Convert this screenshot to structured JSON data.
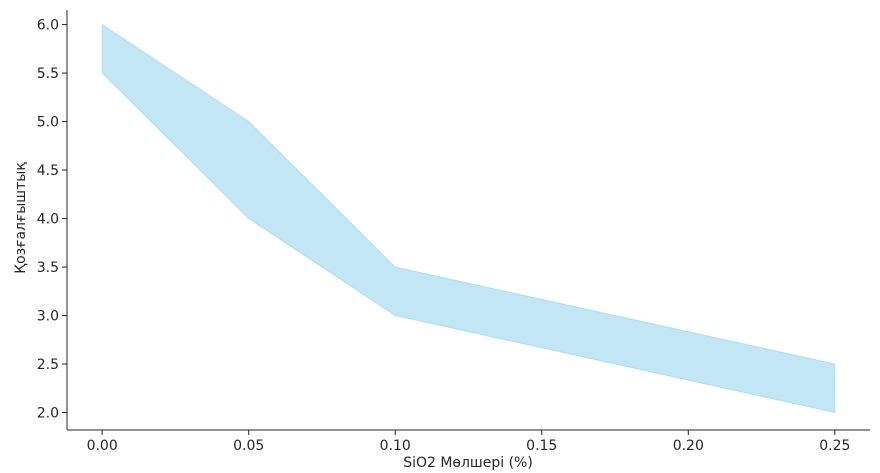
{
  "chart_data": {
    "type": "area",
    "title": "",
    "xlabel": "SiO2 Мөлшері (%)",
    "ylabel": "Қозғалғыштық",
    "xlim": [
      -0.012,
      0.262
    ],
    "ylim": [
      1.82,
      6.15
    ],
    "x_ticks": [
      0.0,
      0.05,
      0.1,
      0.15,
      0.2,
      0.25
    ],
    "x_tick_labels": [
      "0.00",
      "0.05",
      "0.10",
      "0.15",
      "0.20",
      "0.25"
    ],
    "y_ticks": [
      2.0,
      2.5,
      3.0,
      3.5,
      4.0,
      4.5,
      5.0,
      5.5,
      6.0
    ],
    "y_tick_labels": [
      "2.0",
      "2.5",
      "3.0",
      "3.5",
      "4.0",
      "4.5",
      "5.0",
      "5.5",
      "6.0"
    ],
    "grid": false,
    "fill_color": "#87CEEB",
    "fill_opacity": 0.5,
    "series": [
      {
        "x": [
          0.0,
          0.05,
          0.1,
          0.25
        ],
        "lower": [
          5.5,
          4.0,
          3.0,
          2.0
        ],
        "upper": [
          6.0,
          5.0,
          3.5,
          2.5
        ]
      }
    ]
  }
}
